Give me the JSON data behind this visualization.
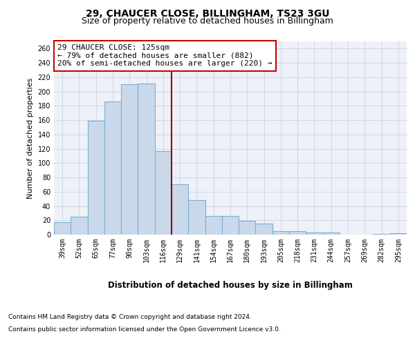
{
  "title_line1": "29, CHAUCER CLOSE, BILLINGHAM, TS23 3GU",
  "title_line2": "Size of property relative to detached houses in Billingham",
  "xlabel": "Distribution of detached houses by size in Billingham",
  "ylabel": "Number of detached properties",
  "categories": [
    "39sqm",
    "52sqm",
    "65sqm",
    "77sqm",
    "90sqm",
    "103sqm",
    "116sqm",
    "129sqm",
    "141sqm",
    "154sqm",
    "167sqm",
    "180sqm",
    "193sqm",
    "205sqm",
    "218sqm",
    "231sqm",
    "244sqm",
    "257sqm",
    "269sqm",
    "282sqm",
    "295sqm"
  ],
  "values": [
    17,
    25,
    159,
    186,
    210,
    211,
    117,
    70,
    48,
    26,
    26,
    19,
    15,
    5,
    5,
    3,
    3,
    0,
    0,
    1,
    2
  ],
  "bar_color": "#c9d9ea",
  "bar_edge_color": "#7bafd4",
  "vline_x": 6.5,
  "vline_color": "#8b0000",
  "annotation_title": "29 CHAUCER CLOSE: 125sqm",
  "annotation_line1": "← 79% of detached houses are smaller (882)",
  "annotation_line2": "20% of semi-detached houses are larger (220) →",
  "annotation_box_color": "#ffffff",
  "annotation_box_edge_color": "#cc0000",
  "ylim": [
    0,
    270
  ],
  "yticks": [
    0,
    20,
    40,
    60,
    80,
    100,
    120,
    140,
    160,
    180,
    200,
    220,
    240,
    260
  ],
  "grid_color": "#d0d8e8",
  "background_color": "#eef2f8",
  "footer_line1": "Contains HM Land Registry data © Crown copyright and database right 2024.",
  "footer_line2": "Contains public sector information licensed under the Open Government Licence v3.0.",
  "title_fontsize": 10,
  "subtitle_fontsize": 9,
  "axis_label_fontsize": 8,
  "tick_fontsize": 7,
  "annotation_fontsize": 8,
  "footer_fontsize": 6.5
}
